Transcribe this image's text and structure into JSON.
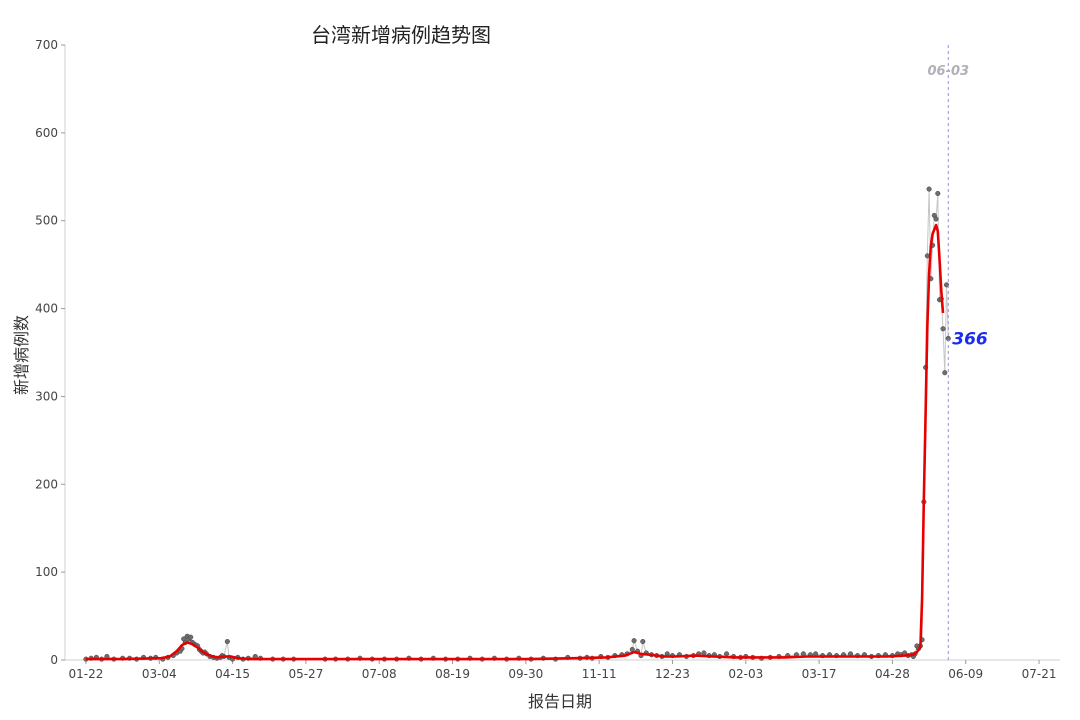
{
  "chart_data": {
    "type": "line",
    "title": "台湾新增病例趋势图",
    "xlabel": "报告日期",
    "ylabel": "新增病例数",
    "ylim": [
      0,
      700
    ],
    "yticks": [
      0,
      100,
      200,
      300,
      400,
      500,
      600,
      700
    ],
    "x_range": [
      "2020-01-10",
      "2021-08-02"
    ],
    "x_ticks": [
      {
        "date": "2020-01-22",
        "label": "01-22"
      },
      {
        "date": "2020-03-04",
        "label": "03-04"
      },
      {
        "date": "2020-04-15",
        "label": "04-15"
      },
      {
        "date": "2020-05-27",
        "label": "05-27"
      },
      {
        "date": "2020-07-08",
        "label": "07-08"
      },
      {
        "date": "2020-08-19",
        "label": "08-19"
      },
      {
        "date": "2020-09-30",
        "label": "09-30"
      },
      {
        "date": "2020-11-11",
        "label": "11-11"
      },
      {
        "date": "2020-12-23",
        "label": "12-23"
      },
      {
        "date": "2021-02-03",
        "label": "02-03"
      },
      {
        "date": "2021-03-17",
        "label": "03-17"
      },
      {
        "date": "2021-04-28",
        "label": "04-28"
      },
      {
        "date": "2021-06-09",
        "label": "06-09"
      },
      {
        "date": "2021-07-21",
        "label": "07-21"
      }
    ],
    "grid": false,
    "series": [
      {
        "points": [
          [
            "2020-01-22",
            1
          ],
          [
            "2020-01-25",
            2
          ],
          [
            "2020-01-28",
            3
          ],
          [
            "2020-01-31",
            1
          ],
          [
            "2020-02-03",
            4
          ],
          [
            "2020-02-07",
            1
          ],
          [
            "2020-02-12",
            2
          ],
          [
            "2020-02-16",
            2
          ],
          [
            "2020-02-20",
            1
          ],
          [
            "2020-02-24",
            3
          ],
          [
            "2020-02-28",
            2
          ],
          [
            "2020-03-02",
            3
          ],
          [
            "2020-03-06",
            1
          ],
          [
            "2020-03-09",
            3
          ],
          [
            "2020-03-12",
            5
          ],
          [
            "2020-03-14",
            8
          ],
          [
            "2020-03-16",
            10
          ],
          [
            "2020-03-17",
            13
          ],
          [
            "2020-03-18",
            24
          ],
          [
            "2020-03-19",
            20
          ],
          [
            "2020-03-20",
            27
          ],
          [
            "2020-03-21",
            24
          ],
          [
            "2020-03-22",
            26
          ],
          [
            "2020-03-23",
            20
          ],
          [
            "2020-03-24",
            18
          ],
          [
            "2020-03-25",
            17
          ],
          [
            "2020-03-26",
            16
          ],
          [
            "2020-03-27",
            12
          ],
          [
            "2020-03-28",
            10
          ],
          [
            "2020-03-29",
            8
          ],
          [
            "2020-03-30",
            9
          ],
          [
            "2020-03-31",
            7
          ],
          [
            "2020-04-02",
            4
          ],
          [
            "2020-04-04",
            3
          ],
          [
            "2020-04-06",
            2
          ],
          [
            "2020-04-08",
            3
          ],
          [
            "2020-04-09",
            5
          ],
          [
            "2020-04-10",
            4
          ],
          [
            "2020-04-12",
            21
          ],
          [
            "2020-04-13",
            3
          ],
          [
            "2020-04-15",
            1
          ],
          [
            "2020-04-18",
            3
          ],
          [
            "2020-04-21",
            1
          ],
          [
            "2020-04-24",
            2
          ],
          [
            "2020-04-28",
            4
          ],
          [
            "2020-05-01",
            2
          ],
          [
            "2020-05-08",
            1
          ],
          [
            "2020-05-14",
            1
          ],
          [
            "2020-05-20",
            1
          ],
          [
            "2020-06-07",
            1
          ],
          [
            "2020-06-13",
            1
          ],
          [
            "2020-06-20",
            1
          ],
          [
            "2020-06-27",
            2
          ],
          [
            "2020-07-04",
            1
          ],
          [
            "2020-07-11",
            1
          ],
          [
            "2020-07-18",
            1
          ],
          [
            "2020-07-25",
            2
          ],
          [
            "2020-08-01",
            1
          ],
          [
            "2020-08-08",
            2
          ],
          [
            "2020-08-15",
            1
          ],
          [
            "2020-08-22",
            1
          ],
          [
            "2020-08-29",
            2
          ],
          [
            "2020-09-05",
            1
          ],
          [
            "2020-09-12",
            2
          ],
          [
            "2020-09-19",
            1
          ],
          [
            "2020-09-26",
            2
          ],
          [
            "2020-10-03",
            1
          ],
          [
            "2020-10-10",
            2
          ],
          [
            "2020-10-17",
            1
          ],
          [
            "2020-10-24",
            3
          ],
          [
            "2020-10-31",
            2
          ],
          [
            "2020-11-04",
            3
          ],
          [
            "2020-11-07",
            2
          ],
          [
            "2020-11-12",
            4
          ],
          [
            "2020-11-16",
            3
          ],
          [
            "2020-11-20",
            5
          ],
          [
            "2020-11-24",
            6
          ],
          [
            "2020-11-27",
            7
          ],
          [
            "2020-11-30",
            12
          ],
          [
            "2020-12-01",
            22
          ],
          [
            "2020-12-03",
            10
          ],
          [
            "2020-12-05",
            5
          ],
          [
            "2020-12-06",
            21
          ],
          [
            "2020-12-08",
            8
          ],
          [
            "2020-12-11",
            6
          ],
          [
            "2020-12-14",
            5
          ],
          [
            "2020-12-17",
            4
          ],
          [
            "2020-12-20",
            7
          ],
          [
            "2020-12-23",
            5
          ],
          [
            "2020-12-27",
            6
          ],
          [
            "2020-12-31",
            4
          ],
          [
            "2021-01-04",
            5
          ],
          [
            "2021-01-07",
            7
          ],
          [
            "2021-01-10",
            8
          ],
          [
            "2021-01-13",
            5
          ],
          [
            "2021-01-16",
            6
          ],
          [
            "2021-01-19",
            4
          ],
          [
            "2021-01-23",
            7
          ],
          [
            "2021-01-27",
            4
          ],
          [
            "2021-01-31",
            3
          ],
          [
            "2021-02-03",
            4
          ],
          [
            "2021-02-07",
            3
          ],
          [
            "2021-02-12",
            2
          ],
          [
            "2021-02-17",
            3
          ],
          [
            "2021-02-22",
            4
          ],
          [
            "2021-02-27",
            5
          ],
          [
            "2021-03-04",
            6
          ],
          [
            "2021-03-08",
            7
          ],
          [
            "2021-03-12",
            6
          ],
          [
            "2021-03-15",
            7
          ],
          [
            "2021-03-19",
            5
          ],
          [
            "2021-03-23",
            6
          ],
          [
            "2021-03-27",
            5
          ],
          [
            "2021-03-31",
            6
          ],
          [
            "2021-04-04",
            7
          ],
          [
            "2021-04-08",
            5
          ],
          [
            "2021-04-12",
            6
          ],
          [
            "2021-04-16",
            4
          ],
          [
            "2021-04-20",
            5
          ],
          [
            "2021-04-24",
            6
          ],
          [
            "2021-04-28",
            5
          ],
          [
            "2021-05-01",
            7
          ],
          [
            "2021-05-03",
            6
          ],
          [
            "2021-05-05",
            8
          ],
          [
            "2021-05-07",
            5
          ],
          [
            "2021-05-09",
            6
          ],
          [
            "2021-05-10",
            4
          ],
          [
            "2021-05-11",
            7
          ],
          [
            "2021-05-12",
            16
          ],
          [
            "2021-05-13",
            13
          ],
          [
            "2021-05-14",
            16
          ],
          [
            "2021-05-15",
            23
          ],
          [
            "2021-05-16",
            180
          ],
          [
            "2021-05-17",
            333
          ],
          [
            "2021-05-18",
            460
          ],
          [
            "2021-05-19",
            536
          ],
          [
            "2021-05-20",
            434
          ],
          [
            "2021-05-21",
            472
          ],
          [
            "2021-05-22",
            506
          ],
          [
            "2021-05-23",
            502
          ],
          [
            "2021-05-24",
            531
          ],
          [
            "2021-05-25",
            410
          ],
          [
            "2021-05-26",
            411
          ],
          [
            "2021-05-27",
            377
          ],
          [
            "2021-05-28",
            327
          ],
          [
            "2021-05-29",
            427
          ],
          [
            "2021-05-30",
            366
          ]
        ]
      },
      {
        "points": [
          [
            "2020-01-22",
            1
          ],
          [
            "2020-02-10",
            1
          ],
          [
            "2020-03-05",
            2
          ],
          [
            "2020-03-10",
            4
          ],
          [
            "2020-03-14",
            10
          ],
          [
            "2020-03-17",
            17
          ],
          [
            "2020-03-20",
            20
          ],
          [
            "2020-03-23",
            18
          ],
          [
            "2020-03-26",
            14
          ],
          [
            "2020-03-29",
            9
          ],
          [
            "2020-04-02",
            5
          ],
          [
            "2020-04-06",
            3
          ],
          [
            "2020-04-10",
            4
          ],
          [
            "2020-04-14",
            4
          ],
          [
            "2020-04-18",
            2
          ],
          [
            "2020-04-25",
            1
          ],
          [
            "2020-05-10",
            1
          ],
          [
            "2020-06-15",
            1
          ],
          [
            "2020-07-20",
            1
          ],
          [
            "2020-08-25",
            1
          ],
          [
            "2020-10-01",
            1
          ],
          [
            "2020-10-28",
            2
          ],
          [
            "2020-11-15",
            3
          ],
          [
            "2020-11-26",
            5
          ],
          [
            "2020-12-01",
            9
          ],
          [
            "2020-12-05",
            7
          ],
          [
            "2020-12-10",
            6
          ],
          [
            "2020-12-18",
            4
          ],
          [
            "2020-12-25",
            4
          ],
          [
            "2021-01-05",
            5
          ],
          [
            "2021-01-15",
            4
          ],
          [
            "2021-01-28",
            3
          ],
          [
            "2021-02-10",
            3
          ],
          [
            "2021-02-25",
            3
          ],
          [
            "2021-03-10",
            4
          ],
          [
            "2021-03-25",
            4
          ],
          [
            "2021-04-10",
            4
          ],
          [
            "2021-04-25",
            4
          ],
          [
            "2021-05-05",
            5
          ],
          [
            "2021-05-10",
            6
          ],
          [
            "2021-05-12",
            9
          ],
          [
            "2021-05-14",
            15
          ],
          [
            "2021-05-15",
            70
          ],
          [
            "2021-05-16",
            180
          ],
          [
            "2021-05-17",
            280
          ],
          [
            "2021-05-18",
            378
          ],
          [
            "2021-05-19",
            440
          ],
          [
            "2021-05-20",
            471
          ],
          [
            "2021-05-21",
            485
          ],
          [
            "2021-05-22",
            490
          ],
          [
            "2021-05-23",
            495
          ],
          [
            "2021-05-24",
            488
          ],
          [
            "2021-05-25",
            455
          ],
          [
            "2021-05-26",
            420
          ],
          [
            "2021-05-27",
            395
          ]
        ]
      }
    ],
    "vline": {
      "date": "2021-05-30",
      "label": "06-03"
    },
    "last_value_label": "366",
    "colors": {
      "raw_line": "#c6c6c6",
      "points": "#6e6e6e",
      "smooth_line": "#e60000",
      "vline": "#8d8df2",
      "last_value": "#1a2cf0",
      "axis": "#cfcfcf"
    }
  }
}
